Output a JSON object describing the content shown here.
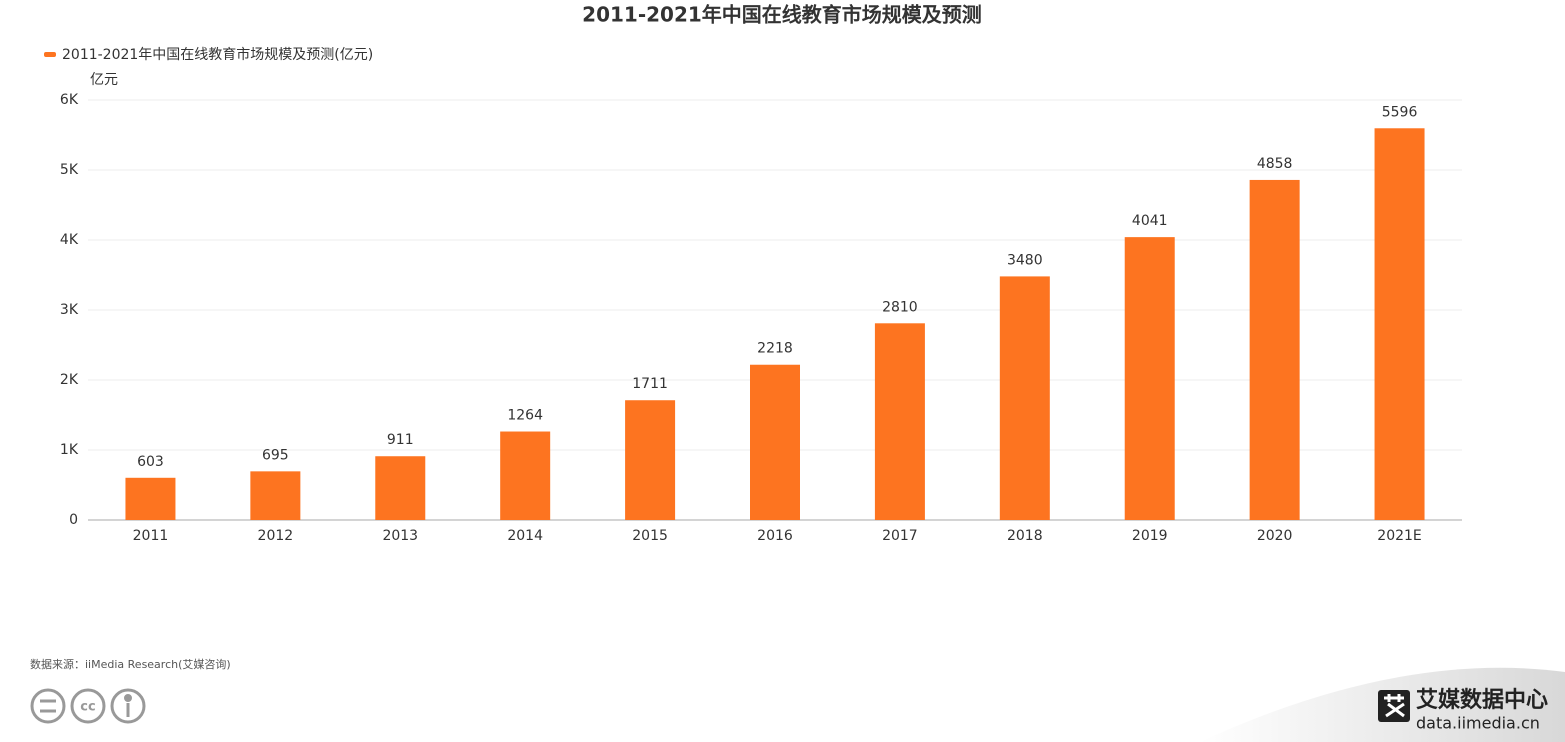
{
  "chart_data": {
    "type": "bar",
    "title": "2011-2021年中国在线教育市场规模及预测",
    "y_unit": "亿元",
    "categories": [
      "2011",
      "2012",
      "2013",
      "2014",
      "2015",
      "2016",
      "2017",
      "2018",
      "2019",
      "2020",
      "2021E"
    ],
    "series": [
      {
        "name": "2011-2021年中国在线教育市场规模及预测(亿元)",
        "color": "#fd7420",
        "values": [
          603,
          695,
          911,
          1264,
          1711,
          2218,
          2810,
          3480,
          4041,
          4858,
          5596
        ]
      }
    ],
    "ylim": [
      0,
      6000
    ],
    "yticks": [
      0,
      {
        "value": 1000,
        "label": "1K"
      },
      {
        "value": 2000,
        "label": "2K"
      },
      {
        "value": 3000,
        "label": "3K"
      },
      {
        "value": 4000,
        "label": "4K"
      },
      {
        "value": 5000,
        "label": "5K"
      },
      {
        "value": 6000,
        "label": "6K"
      }
    ],
    "grid": true,
    "legend": "top-left"
  },
  "footer": {
    "source": "数据来源：iiMedia Research(艾媒咨询)",
    "brand": "艾媒数据中心",
    "url": "data.iimedia.cn"
  }
}
